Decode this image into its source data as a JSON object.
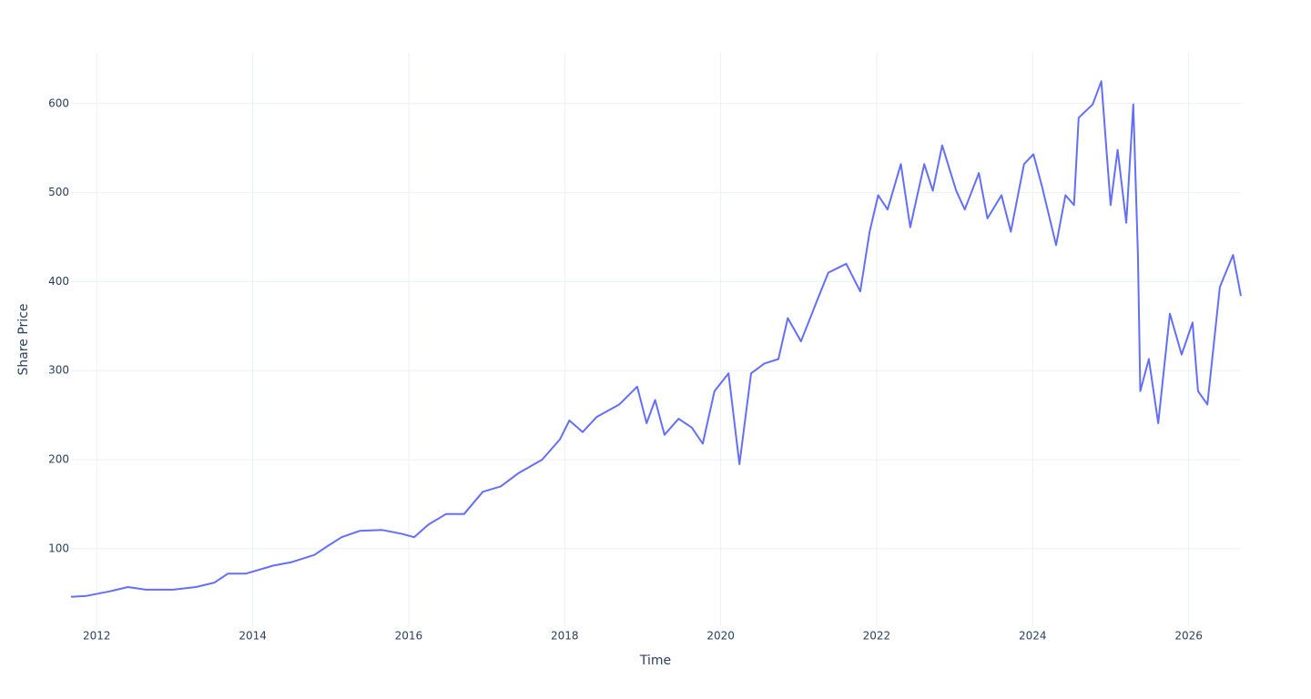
{
  "chart_data": {
    "type": "line",
    "x_label": "Time",
    "y_label": "Share Price",
    "x": [
      2011.67,
      2011.87,
      2012.16,
      2012.4,
      2012.63,
      2012.98,
      2013.27,
      2013.51,
      2013.68,
      2013.91,
      2014.26,
      2014.5,
      2014.79,
      2014.96,
      2015.14,
      2015.37,
      2015.66,
      2015.9,
      2016.07,
      2016.25,
      2016.48,
      2016.71,
      2016.95,
      2017.18,
      2017.41,
      2017.71,
      2017.94,
      2018.06,
      2018.23,
      2018.41,
      2018.7,
      2018.93,
      2019.05,
      2019.16,
      2019.28,
      2019.46,
      2019.63,
      2019.77,
      2019.92,
      2020.1,
      2020.24,
      2020.39,
      2020.56,
      2020.74,
      2020.86,
      2021.03,
      2021.26,
      2021.38,
      2021.61,
      2021.79,
      2021.91,
      2022.02,
      2022.14,
      2022.31,
      2022.43,
      2022.61,
      2022.72,
      2022.84,
      2023.02,
      2023.13,
      2023.31,
      2023.42,
      2023.6,
      2023.72,
      2023.89,
      2024.01,
      2024.12,
      2024.3,
      2024.42,
      2024.53,
      2024.59,
      2024.77,
      2024.88,
      2025.0,
      2025.09,
      2025.2,
      2025.29,
      2025.35,
      2025.38,
      2025.49,
      2025.61,
      2025.76,
      2025.91,
      2026.05,
      2026.12,
      2026.24,
      2026.4,
      2026.57,
      2026.67
    ],
    "series": [
      {
        "name": "Share Price",
        "color": "#636efa",
        "values": [
          46,
          47,
          52,
          57,
          54,
          54,
          57,
          62,
          72,
          72,
          81,
          85,
          93,
          103,
          113,
          120,
          121,
          117,
          113,
          127,
          139,
          139,
          164,
          170,
          185,
          200,
          223,
          244,
          231,
          248,
          262,
          282,
          241,
          267,
          228,
          246,
          236,
          218,
          277,
          297,
          195,
          297,
          308,
          313,
          359,
          333,
          384,
          410,
          420,
          389,
          456,
          497,
          481,
          532,
          461,
          532,
          502,
          553,
          502,
          481,
          522,
          471,
          497,
          456,
          532,
          543,
          507,
          441,
          497,
          486,
          584,
          599,
          625,
          486,
          548,
          466,
          599,
          430,
          277,
          313,
          241,
          364,
          318,
          354,
          277,
          262,
          394,
          430,
          384
        ]
      }
    ],
    "xlim": [
      2011.67,
      2026.67
    ],
    "xticks": [
      2012,
      2014,
      2016,
      2018,
      2020,
      2022,
      2024,
      2026
    ],
    "ylim": [
      13,
      657
    ],
    "yticks": [
      100,
      200,
      300,
      400,
      500,
      600
    ],
    "grid": true
  }
}
